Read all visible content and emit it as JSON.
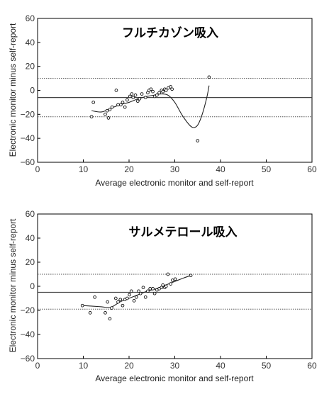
{
  "chart_data": [
    {
      "type": "scatter",
      "title": "フルチカゾン吸入",
      "xlabel": "Average electronic monitor and self-report",
      "ylabel": "Electronic monitor minus self-report",
      "xlim": [
        0,
        60
      ],
      "ylim": [
        -60,
        60
      ],
      "x_ticks": [
        "0",
        "10",
        "20",
        "30",
        "40",
        "50",
        "60"
      ],
      "y_ticks": [
        "60",
        "40",
        "20",
        "0",
        "−20",
        "−40",
        "−60"
      ],
      "grid": false,
      "mean_line": -6,
      "limits": [
        10,
        -22
      ],
      "points": [
        [
          11.8,
          -22
        ],
        [
          12.2,
          -10
        ],
        [
          14.8,
          -20
        ],
        [
          15.2,
          -17
        ],
        [
          15.5,
          -23
        ],
        [
          15.8,
          -16
        ],
        [
          16.3,
          -14
        ],
        [
          17.2,
          0
        ],
        [
          17.6,
          -12
        ],
        [
          18.2,
          -12
        ],
        [
          18.6,
          -10
        ],
        [
          19.1,
          -14
        ],
        [
          19.6,
          -8
        ],
        [
          20.2,
          -5
        ],
        [
          20.6,
          -3
        ],
        [
          20.9,
          -6
        ],
        [
          21.4,
          -4
        ],
        [
          21.9,
          -9
        ],
        [
          22.3,
          -7
        ],
        [
          22.8,
          -3
        ],
        [
          23.6,
          -6
        ],
        [
          24.1,
          -2
        ],
        [
          24.4,
          0
        ],
        [
          24.8,
          1
        ],
        [
          25.2,
          -1
        ],
        [
          25.6,
          -5
        ],
        [
          26.1,
          -4
        ],
        [
          26.6,
          -2
        ],
        [
          27.1,
          0
        ],
        [
          27.4,
          -1
        ],
        [
          27.8,
          1
        ],
        [
          28.1,
          0
        ],
        [
          28.6,
          2
        ],
        [
          29.1,
          3
        ],
        [
          29.4,
          1
        ],
        [
          35.0,
          -42
        ],
        [
          37.5,
          11
        ]
      ],
      "trend": [
        [
          11.8,
          -17
        ],
        [
          14,
          -18
        ],
        [
          16,
          -15
        ],
        [
          18,
          -12
        ],
        [
          20,
          -10
        ],
        [
          22,
          -7
        ],
        [
          24,
          -5
        ],
        [
          25.5,
          -4
        ],
        [
          27,
          -3
        ],
        [
          28.5,
          -4
        ],
        [
          30,
          -10
        ],
        [
          31.5,
          -20
        ],
        [
          33,
          -28
        ],
        [
          34,
          -31
        ],
        [
          35,
          -29
        ],
        [
          36,
          -20
        ],
        [
          37,
          -6
        ],
        [
          37.5,
          4
        ]
      ]
    },
    {
      "type": "scatter",
      "title": "サルメテロール吸入",
      "xlabel": "Average electronic monitor and self-report",
      "ylabel": "Electronic monitor minus self-report",
      "xlim": [
        0,
        60
      ],
      "ylim": [
        -60,
        60
      ],
      "x_ticks": [
        "0",
        "10",
        "20",
        "30",
        "40",
        "50",
        "60"
      ],
      "y_ticks": [
        "60",
        "40",
        "20",
        "0",
        "−20",
        "−40",
        "−60"
      ],
      "grid": false,
      "mean_line": -5,
      "limits": [
        10,
        -19
      ],
      "points": [
        [
          9.8,
          -16
        ],
        [
          11.5,
          -22
        ],
        [
          12.5,
          -9
        ],
        [
          14.8,
          -22
        ],
        [
          15.3,
          -13
        ],
        [
          15.8,
          -27
        ],
        [
          16.2,
          -18
        ],
        [
          17.1,
          -10
        ],
        [
          17.6,
          -13
        ],
        [
          18.1,
          -11
        ],
        [
          18.6,
          -16
        ],
        [
          19.1,
          -11
        ],
        [
          19.6,
          -10
        ],
        [
          20.1,
          -7
        ],
        [
          20.5,
          -4
        ],
        [
          21.1,
          -12
        ],
        [
          21.6,
          -9
        ],
        [
          22.1,
          -4
        ],
        [
          22.5,
          -6
        ],
        [
          23.1,
          -1
        ],
        [
          23.6,
          -9
        ],
        [
          24.1,
          -4
        ],
        [
          24.6,
          -2
        ],
        [
          25.2,
          -2
        ],
        [
          25.6,
          -6
        ],
        [
          26.1,
          -3
        ],
        [
          26.6,
          -2
        ],
        [
          27.1,
          -1
        ],
        [
          27.4,
          1
        ],
        [
          27.8,
          -1
        ],
        [
          28.1,
          0
        ],
        [
          28.5,
          10
        ],
        [
          29.1,
          2
        ],
        [
          29.5,
          5
        ],
        [
          30.1,
          6
        ],
        [
          33.5,
          9
        ]
      ],
      "trend": [
        [
          9.8,
          -16
        ],
        [
          12,
          -16.5
        ],
        [
          14,
          -17
        ],
        [
          16,
          -17.5
        ],
        [
          18,
          -13
        ],
        [
          20,
          -10
        ],
        [
          22,
          -7
        ],
        [
          24,
          -4
        ],
        [
          26,
          -2
        ],
        [
          28,
          1
        ],
        [
          30,
          4
        ],
        [
          32,
          7
        ],
        [
          33.5,
          9
        ]
      ]
    }
  ]
}
